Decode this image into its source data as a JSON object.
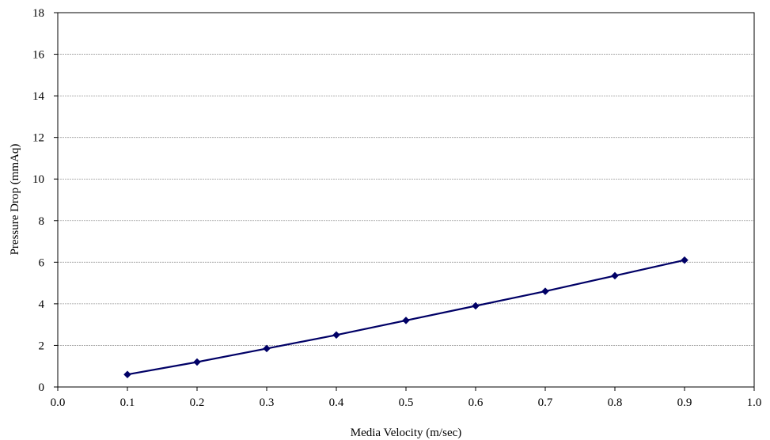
{
  "chart_data": {
    "type": "line",
    "title": "",
    "xlabel": "Media Velocity (m/sec)",
    "ylabel": "Pressure Drop (mmAq)",
    "xlim": [
      0.0,
      1.0
    ],
    "ylim": [
      0,
      18
    ],
    "x_ticks": [
      "0.0",
      "0.1",
      "0.2",
      "0.3",
      "0.4",
      "0.5",
      "0.6",
      "0.7",
      "0.8",
      "0.9",
      "1.0"
    ],
    "y_ticks": [
      "0",
      "2",
      "4",
      "6",
      "8",
      "10",
      "12",
      "14",
      "16",
      "18"
    ],
    "grid": "horizontal",
    "legend": "none",
    "series": [
      {
        "color": "#000066",
        "marker": "diamond",
        "x": [
          0.1,
          0.2,
          0.3,
          0.4,
          0.5,
          0.6,
          0.7,
          0.8,
          0.9
        ],
        "y": [
          0.6,
          1.2,
          1.85,
          2.5,
          3.2,
          3.9,
          4.6,
          5.35,
          6.1
        ]
      }
    ]
  }
}
